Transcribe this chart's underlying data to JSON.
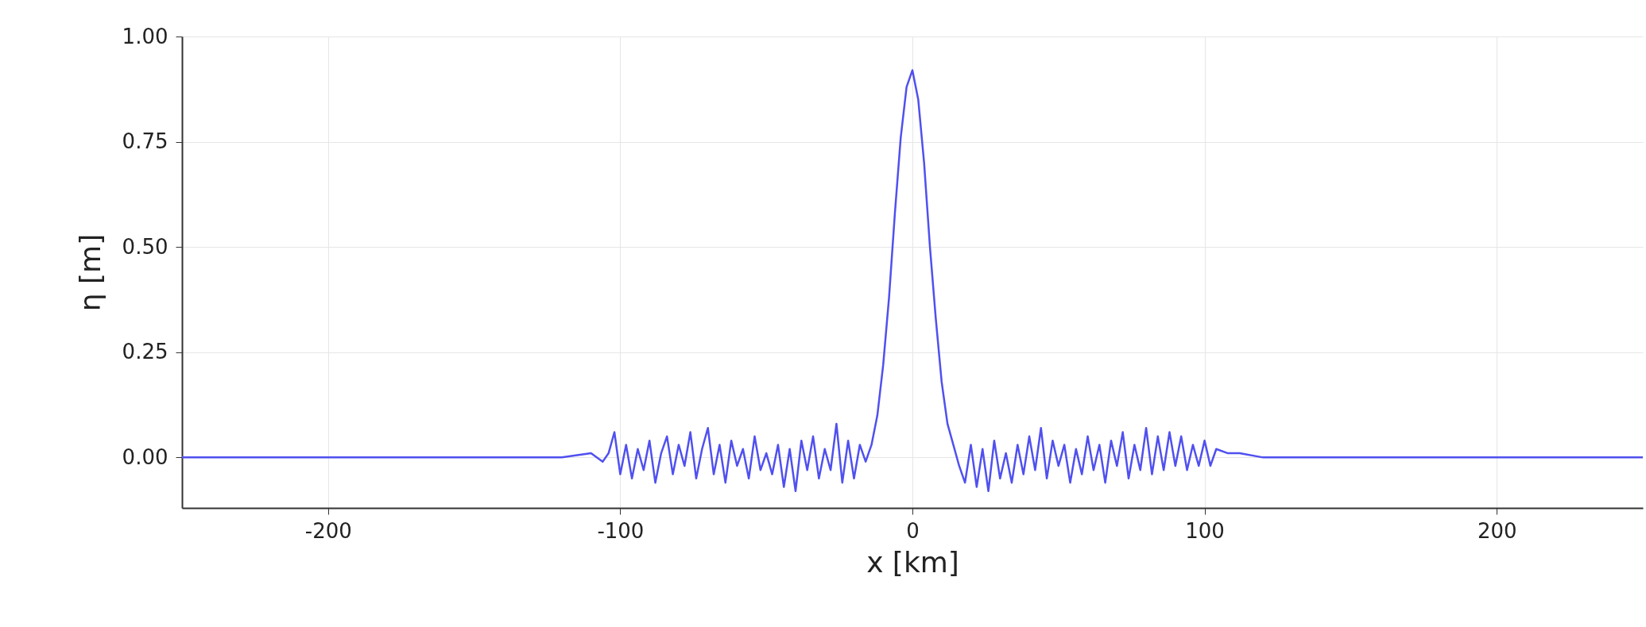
{
  "chart_data": {
    "type": "line",
    "xlabel": "x [km]",
    "ylabel": "η [m]",
    "xlim": [
      -250,
      250
    ],
    "ylim": [
      -0.12,
      1.0
    ],
    "xticks": [
      -200,
      -100,
      0,
      100,
      200
    ],
    "yticks": [
      {
        "value": 0,
        "label": "0.00"
      },
      {
        "value": 0.25,
        "label": "0.25"
      },
      {
        "value": 0.5,
        "label": "0.50"
      },
      {
        "value": 0.75,
        "label": "0.75"
      },
      {
        "value": 1,
        "label": "1.00"
      }
    ],
    "grid": true,
    "line_style": "solid",
    "series": [
      {
        "color": "#5050f0",
        "x": [
          -250,
          -120,
          -110,
          -106,
          -104,
          -102,
          -100,
          -98,
          -96,
          -94,
          -92,
          -90,
          -88,
          -86,
          -84,
          -82,
          -80,
          -78,
          -76,
          -74,
          -72,
          -70,
          -68,
          -66,
          -64,
          -62,
          -60,
          -58,
          -56,
          -54,
          -52,
          -50,
          -48,
          -46,
          -44,
          -42,
          -40,
          -38,
          -36,
          -34,
          -32,
          -30,
          -28,
          -26,
          -24,
          -22,
          -20,
          -18,
          -16,
          -14,
          -12,
          -10,
          -8,
          -6,
          -4,
          -2,
          0,
          2,
          4,
          6,
          8,
          10,
          12,
          14,
          16,
          18,
          20,
          22,
          24,
          26,
          28,
          30,
          32,
          34,
          36,
          38,
          40,
          42,
          44,
          46,
          48,
          50,
          52,
          54,
          56,
          58,
          60,
          62,
          64,
          66,
          68,
          70,
          72,
          74,
          76,
          78,
          80,
          82,
          84,
          86,
          88,
          90,
          92,
          94,
          96,
          98,
          100,
          102,
          104,
          108,
          112,
          120,
          250
        ],
        "values": [
          0,
          0,
          0.01,
          -0.01,
          0.01,
          0.06,
          -0.04,
          0.03,
          -0.05,
          0.02,
          -0.03,
          0.04,
          -0.06,
          0.01,
          0.05,
          -0.04,
          0.03,
          -0.02,
          0.06,
          -0.05,
          0.02,
          0.07,
          -0.04,
          0.03,
          -0.06,
          0.04,
          -0.02,
          0.02,
          -0.05,
          0.05,
          -0.03,
          0.01,
          -0.04,
          0.03,
          -0.07,
          0.02,
          -0.08,
          0.04,
          -0.03,
          0.05,
          -0.05,
          0.02,
          -0.03,
          0.08,
          -0.06,
          0.04,
          -0.05,
          0.03,
          -0.01,
          0.03,
          0.1,
          0.22,
          0.38,
          0.58,
          0.76,
          0.88,
          0.92,
          0.85,
          0.7,
          0.5,
          0.33,
          0.18,
          0.08,
          0.03,
          -0.02,
          -0.06,
          0.03,
          -0.07,
          0.02,
          -0.08,
          0.04,
          -0.05,
          0.01,
          -0.06,
          0.03,
          -0.04,
          0.05,
          -0.03,
          0.07,
          -0.05,
          0.04,
          -0.02,
          0.03,
          -0.06,
          0.02,
          -0.04,
          0.05,
          -0.03,
          0.03,
          -0.06,
          0.04,
          -0.02,
          0.06,
          -0.05,
          0.03,
          -0.03,
          0.07,
          -0.04,
          0.05,
          -0.03,
          0.06,
          -0.02,
          0.05,
          -0.03,
          0.03,
          -0.02,
          0.04,
          -0.02,
          0.02,
          0.01,
          0.01,
          0,
          0
        ]
      }
    ]
  }
}
